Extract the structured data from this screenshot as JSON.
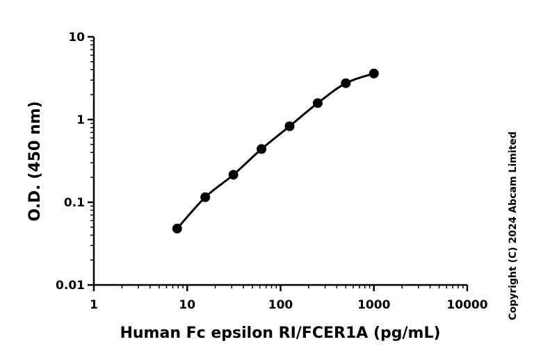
{
  "chart_data": {
    "type": "scatter",
    "xlabel": "Human Fc epsilon RI/FCER1A (pg/mL)",
    "ylabel": "O.D. (450 nm)",
    "x_scale": "log",
    "y_scale": "log",
    "xlim": [
      1,
      10000
    ],
    "ylim": [
      0.01,
      10
    ],
    "x_ticks": [
      1,
      10,
      100,
      1000,
      10000
    ],
    "x_tick_labels": [
      "1",
      "10",
      "100",
      "1000",
      "10000"
    ],
    "y_ticks": [
      0.01,
      0.1,
      1,
      10
    ],
    "y_tick_labels": [
      "0.01",
      "0.1",
      "1",
      "10"
    ],
    "grid": false,
    "series": [
      {
        "x": [
          7.8,
          15.6,
          31.25,
          62.5,
          125,
          250,
          500,
          1000
        ],
        "y": [
          0.048,
          0.115,
          0.215,
          0.44,
          0.83,
          1.58,
          2.75,
          3.6
        ],
        "color": "#000000",
        "marker": "circle",
        "fit_line": true
      }
    ],
    "annotations": [
      "Copyright (C) 2024 Abcam Limited"
    ]
  }
}
